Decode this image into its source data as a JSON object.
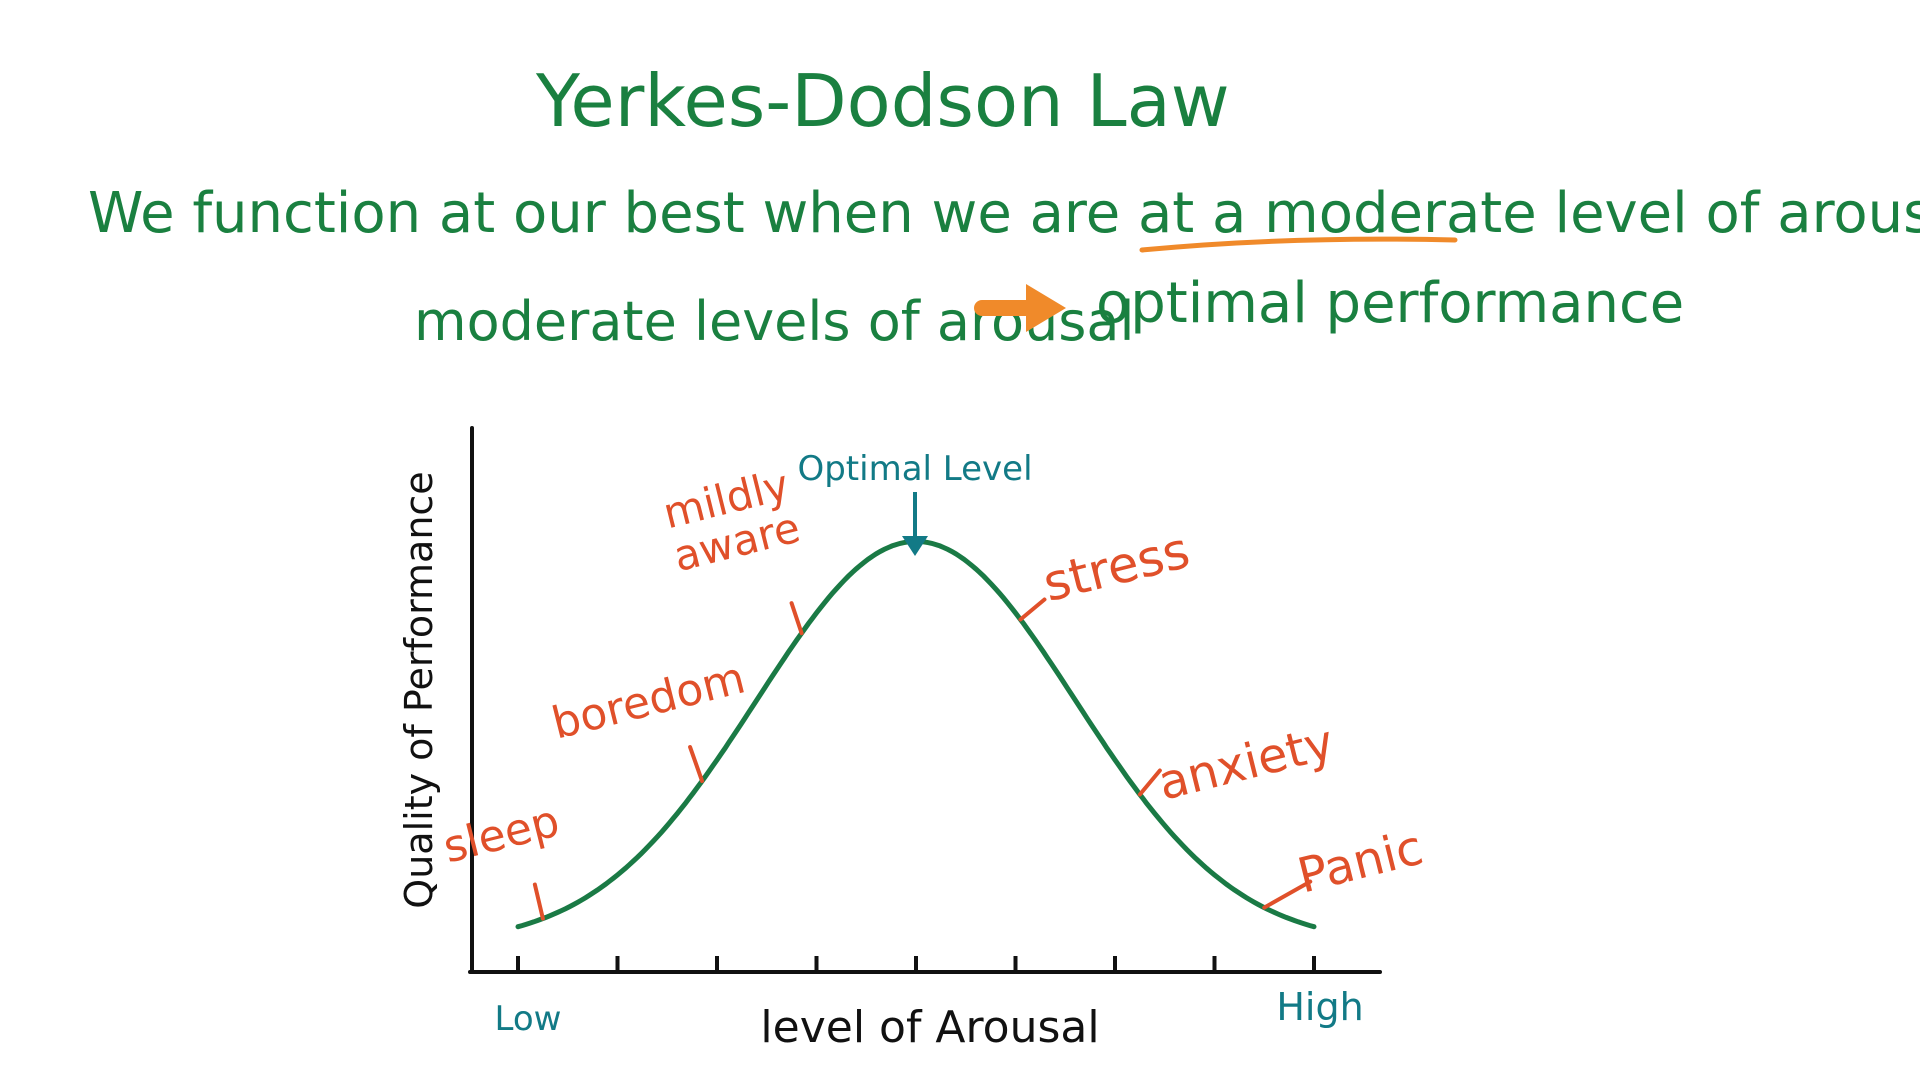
{
  "header": {
    "title": "Yerkes-Dodson Law",
    "statement_prefix": "We function at our best when we are at a ",
    "statement_emphasis": "moderate level",
    "statement_suffix": " of arousal",
    "cause": "moderate levels of arousal",
    "effect": "optimal performance"
  },
  "colors": {
    "header_text": "#1a8040",
    "underline": "#f08a2a",
    "arrow": "#f08a2a",
    "curve": "#1a7a45",
    "stage_labels": "#e0502a",
    "optimal_label": "#127a86",
    "axis": "#111111"
  },
  "chart_data": {
    "type": "line",
    "xlabel": "level of Arousal",
    "ylabel": "Quality of Performance",
    "x_ticks": {
      "low": "Low",
      "high": "High"
    },
    "tick_count": 9,
    "xlim": [
      0,
      8
    ],
    "ylim": [
      0,
      1
    ],
    "curve_peak_x": 4,
    "curve_width": 1.6,
    "curve_baseline": 0.05,
    "curve_peak": 0.78,
    "peak_label": "Optimal Level",
    "stages": [
      {
        "label": "sleep",
        "x": 0.25
      },
      {
        "label": "boredom",
        "x": 1.85
      },
      {
        "label": "mildly aware",
        "x": 2.85
      },
      {
        "label": "stress",
        "x": 5.05
      },
      {
        "label": "anxiety",
        "x": 6.25
      },
      {
        "label": "Panic",
        "x": 7.5
      }
    ]
  }
}
